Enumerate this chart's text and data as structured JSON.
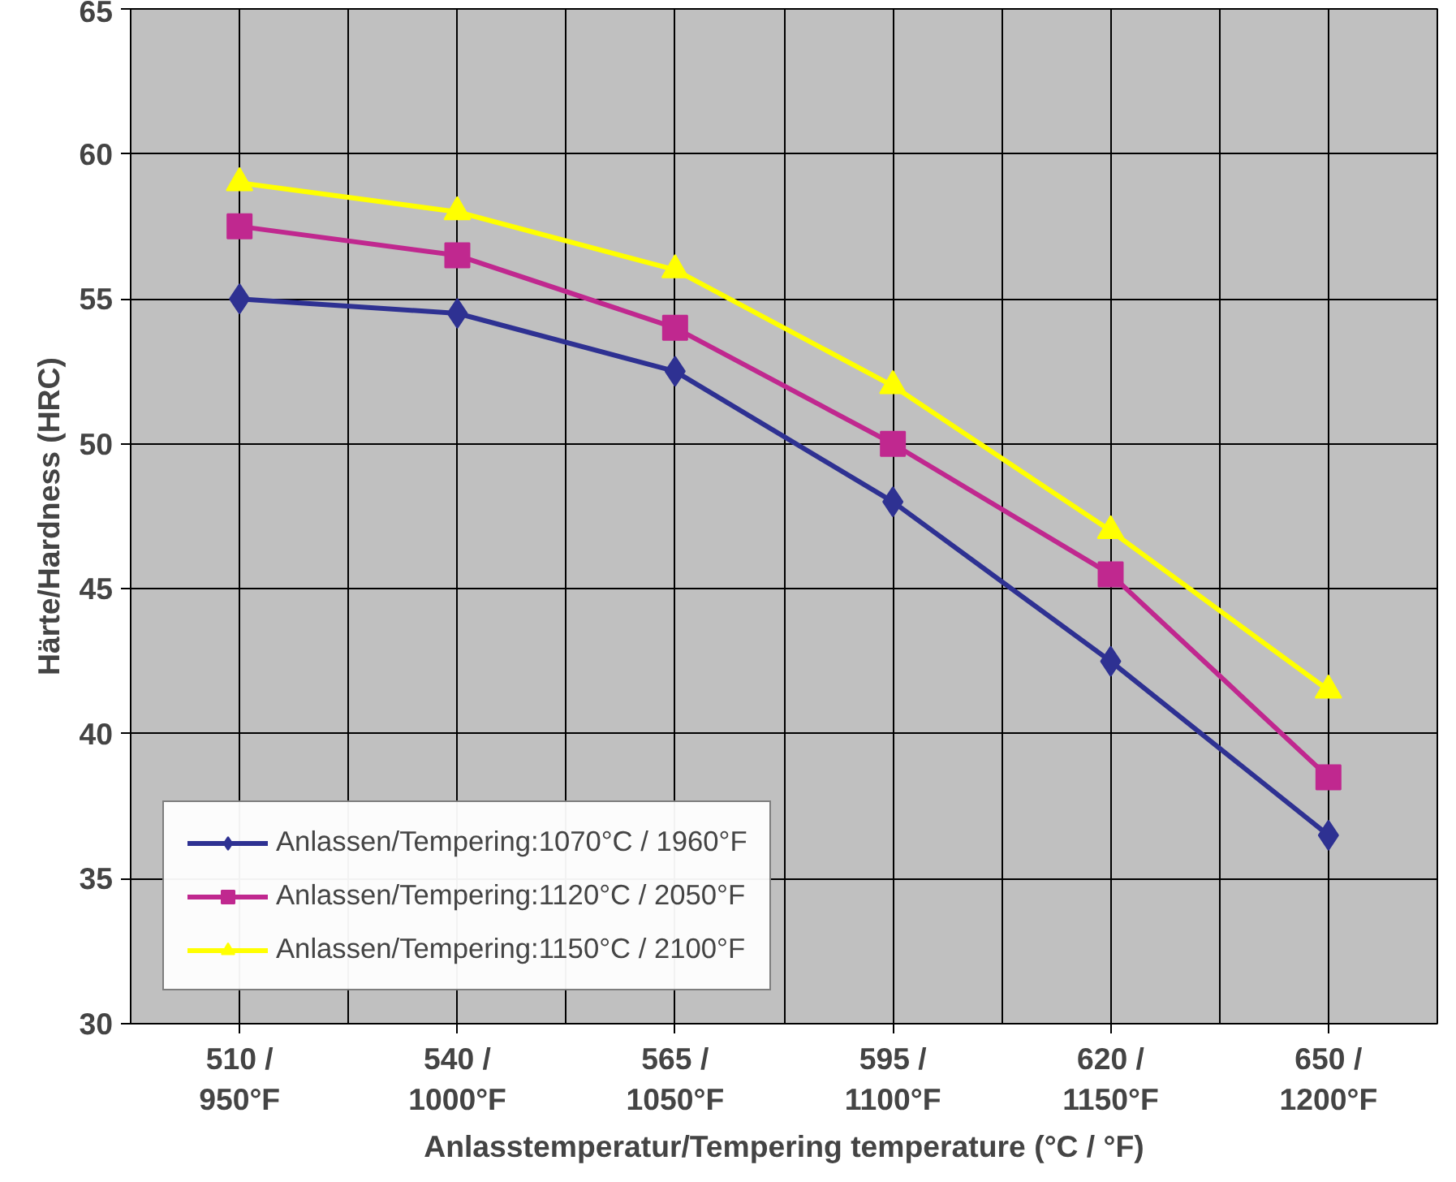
{
  "chart_data": {
    "type": "line",
    "xlabel": "Anlasstemperatur/Tempering temperature (°C / °F)",
    "ylabel": "Härte/Hardness (HRC)",
    "categories": [
      "510 /\n950°F",
      "540 /\n1000°F",
      "565 /\n1050°F",
      "595 /\n1100°F",
      "620 /\n1150°F",
      "650 /\n1200°F"
    ],
    "ylim": [
      30,
      65
    ],
    "yticks": [
      30,
      35,
      40,
      45,
      50,
      55,
      60,
      65
    ],
    "grid": true,
    "legend": "bottom left",
    "series": [
      {
        "name": "Anlassen/Tempering:1070°C / 1960°F",
        "color": "#2e3192",
        "marker": "diamond",
        "values": [
          55,
          54.5,
          52.5,
          48,
          42.5,
          36.5
        ]
      },
      {
        "name": "Anlassen/Tempering:1120°C / 2050°F",
        "color": "#c0288f",
        "marker": "square",
        "values": [
          57.5,
          56.5,
          54,
          50,
          45.5,
          38.5
        ]
      },
      {
        "name": "Anlassen/Tempering:1150°C / 2100°F",
        "color": "#ffff00",
        "marker": "triangle",
        "values": [
          59,
          58,
          56,
          52,
          47,
          41.5
        ]
      }
    ]
  }
}
